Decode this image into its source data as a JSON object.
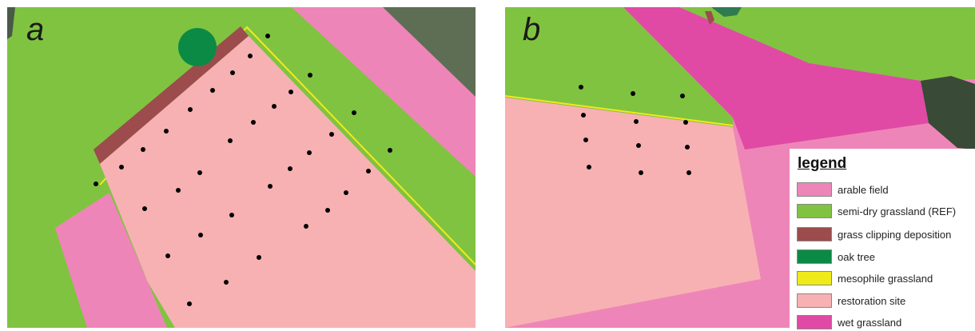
{
  "panels": [
    {
      "id": "a",
      "label": "a"
    },
    {
      "id": "b",
      "label": "b"
    }
  ],
  "legend": {
    "title": "legend",
    "items": [
      {
        "label": "arable field",
        "color": "#ee85b8"
      },
      {
        "label": "semi-dry grassland (REF)",
        "color": "#80c341"
      },
      {
        "label": "grass clipping deposition",
        "color": "#9c4c4c"
      },
      {
        "label": "oak tree",
        "color": "#0b8a45"
      },
      {
        "label": "mesophile grassland",
        "color": "#f1ea1a"
      },
      {
        "label": "restoration site",
        "color": "#f7b1b3"
      },
      {
        "label": "wet grassland",
        "color": "#e04aa4"
      }
    ]
  }
}
